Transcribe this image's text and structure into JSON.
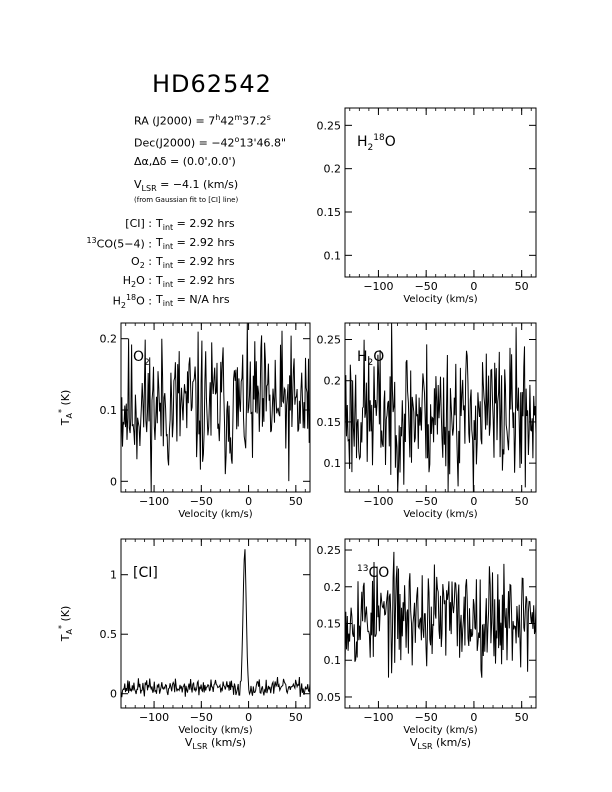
{
  "header": {
    "title": "HD62542",
    "ra_label": "RA (J2000)  =  ",
    "ra_h": "7",
    "ra_m": "42",
    "ra_s": "37.2",
    "dec_label": "Dec(J2000)  =  ",
    "dec_deg": "−42",
    "dec_rest": "13'46.8\"",
    "offset_label": "Δα,Δδ  =  (0.0',0.0')",
    "vlsr_v": "V",
    "vlsr_sub": "LSR",
    "vlsr_value": "  =  −4.1 (km/s)",
    "vlsr_note": "(from Gaussian fit to [CI] line)"
  },
  "integrations": [
    {
      "sup": "",
      "label": "[CI]",
      "sub_label": "",
      "tint": "2.92 hrs"
    },
    {
      "sup": "13",
      "label": "CO(5−4)",
      "sub_label": "",
      "tint": "2.92 hrs"
    },
    {
      "sup": "",
      "label": "O",
      "sub_label": "2",
      "tint": "2.92 hrs"
    },
    {
      "sup": "",
      "label": "H",
      "sub_label": "2",
      "label2": "O",
      "tint": "2.92 hrs"
    },
    {
      "sup": "",
      "label": "H",
      "sub_label": "2",
      "sup2": "18",
      "label2": "O",
      "tint": "N/A hrs"
    }
  ],
  "tint_text": "T",
  "tint_sub": "int",
  "yaxis_label": "T",
  "yaxis_sub": "A",
  "yaxis_sup": "*",
  "yaxis_unit": " (K)",
  "xaxis_label": "Velocity (km/s)",
  "xaxis_label2_v": "V",
  "xaxis_label2_sub": "LSR",
  "xaxis_label2_unit": " (km/s)",
  "chart_data": [
    {
      "type": "line",
      "id": "h2-18o",
      "panel_label_main": "H",
      "panel_label_sub": "2",
      "panel_label_sup": "18",
      "panel_label_end": "O",
      "xlim": [
        -135,
        65
      ],
      "ylim": [
        0.075,
        0.27
      ],
      "xticks": [
        -100,
        -50,
        0,
        50
      ],
      "yticks": [
        0.1,
        0.15,
        0.2,
        0.25
      ],
      "xlabel": "Velocity (km/s)",
      "series": []
    },
    {
      "type": "line",
      "id": "o2",
      "panel_label_main": "O",
      "panel_label_sub": "2",
      "xlim": [
        -135,
        65
      ],
      "ylim": [
        -0.015,
        0.222
      ],
      "xticks": [
        -100,
        -50,
        0,
        50
      ],
      "yticks": [
        0,
        0.1,
        0.2
      ],
      "xlabel": "Velocity (km/s)",
      "ylabel": "T*A (K)",
      "noise": {
        "mean": 0.105,
        "amp": 0.095,
        "seed": 11
      },
      "series": [
        {
          "x": [
            -135,
            65
          ],
          "y": [
            0.1,
            0.1
          ]
        }
      ]
    },
    {
      "type": "line",
      "id": "h2o",
      "panel_label_main": "H",
      "panel_label_sub": "2",
      "panel_label_end": "O",
      "xlim": [
        -135,
        65
      ],
      "ylim": [
        0.065,
        0.27
      ],
      "xticks": [
        -100,
        -50,
        0,
        50
      ],
      "yticks": [
        0.1,
        0.15,
        0.2,
        0.25
      ],
      "xlabel": "Velocity (km/s)",
      "noise": {
        "mean": 0.16,
        "amp": 0.085,
        "seed": 23
      },
      "series": [
        {
          "x": [
            -135,
            65
          ],
          "y": [
            0.16,
            0.16
          ]
        }
      ]
    },
    {
      "type": "line",
      "id": "ci",
      "panel_label_main": "[CI]",
      "xlim": [
        -135,
        65
      ],
      "ylim": [
        -0.12,
        1.3
      ],
      "xticks": [
        -100,
        -50,
        0,
        50
      ],
      "yticks": [
        0,
        0.5,
        1
      ],
      "xlabel": "Velocity (km/s)",
      "xlabel2": "VLSR (km/s)",
      "ylabel": "T*A (K)",
      "noise": {
        "mean": 0.05,
        "amp": 0.07,
        "seed": 37
      },
      "peak": {
        "x": -4.1,
        "y": 1.22,
        "width": 1.6
      },
      "series": [
        {
          "x": [
            -135,
            65
          ],
          "y": [
            0.05,
            0.05
          ]
        }
      ]
    },
    {
      "type": "line",
      "id": "13co",
      "panel_label_main": "CO",
      "panel_label_sup": "13",
      "xlim": [
        -135,
        65
      ],
      "ylim": [
        0.035,
        0.265
      ],
      "xticks": [
        -100,
        -50,
        0,
        50
      ],
      "yticks": [
        0.05,
        0.1,
        0.15,
        0.2,
        0.25
      ],
      "xlabel": "Velocity (km/s)",
      "xlabel2": "VLSR (km/s)",
      "noise": {
        "mean": 0.16,
        "amp": 0.07,
        "seed": 53
      },
      "series": [
        {
          "x": [
            -135,
            65
          ],
          "y": [
            0.16,
            0.16
          ]
        }
      ]
    }
  ]
}
